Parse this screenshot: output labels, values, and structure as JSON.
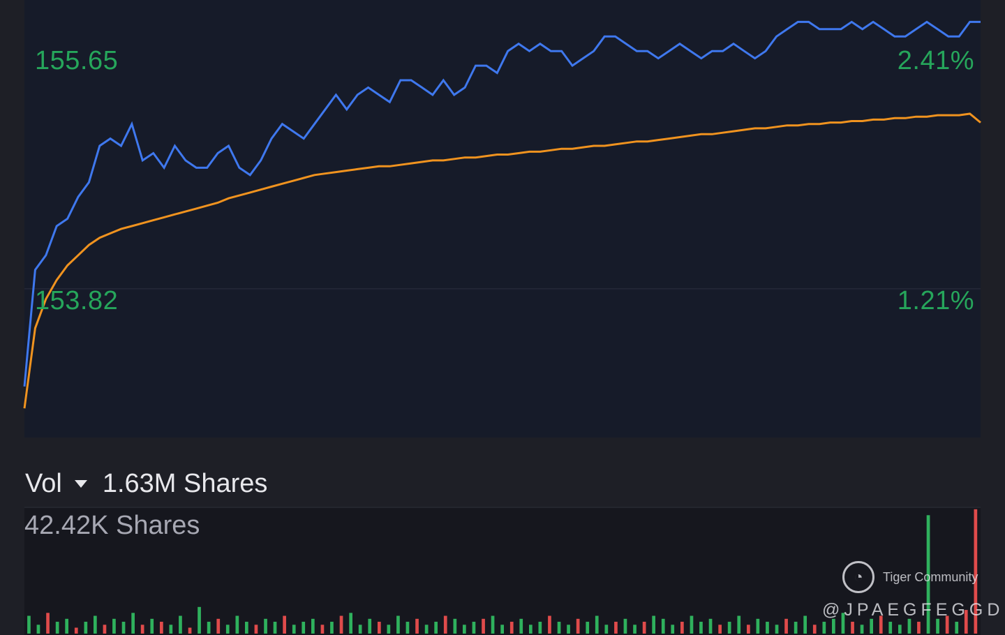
{
  "chart_data": [
    {
      "type": "line",
      "series": [
        {
          "color": "#3f78ee",
          "values": [
            153.15,
            153.95,
            154.05,
            154.25,
            154.3,
            154.45,
            154.55,
            154.8,
            154.85,
            154.8,
            154.95,
            154.7,
            154.75,
            154.65,
            154.8,
            154.7,
            154.65,
            154.65,
            154.75,
            154.8,
            154.65,
            154.6,
            154.7,
            154.85,
            154.95,
            154.9,
            154.85,
            154.95,
            155.05,
            155.15,
            155.05,
            155.15,
            155.2,
            155.15,
            155.1,
            155.25,
            155.25,
            155.2,
            155.15,
            155.25,
            155.15,
            155.2,
            155.35,
            155.35,
            155.3,
            155.45,
            155.5,
            155.45,
            155.5,
            155.45,
            155.45,
            155.35,
            155.4,
            155.45,
            155.55,
            155.55,
            155.5,
            155.45,
            155.45,
            155.4,
            155.45,
            155.5,
            155.45,
            155.4,
            155.45,
            155.45,
            155.5,
            155.45,
            155.4,
            155.45,
            155.55,
            155.6,
            155.65,
            155.65,
            155.6,
            155.6,
            155.6,
            155.65,
            155.6,
            155.65,
            155.6,
            155.55,
            155.55,
            155.6,
            155.65,
            155.6,
            155.55,
            155.55,
            155.65,
            155.65
          ],
          "name": ""
        },
        {
          "color": "#f0931f",
          "values": [
            153.0,
            153.55,
            153.75,
            153.88,
            153.98,
            154.05,
            154.12,
            154.17,
            154.2,
            154.23,
            154.25,
            154.27,
            154.29,
            154.31,
            154.33,
            154.35,
            154.37,
            154.39,
            154.41,
            154.44,
            154.46,
            154.48,
            154.5,
            154.52,
            154.54,
            154.56,
            154.58,
            154.6,
            154.61,
            154.62,
            154.63,
            154.64,
            154.65,
            154.66,
            154.66,
            154.67,
            154.68,
            154.69,
            154.7,
            154.7,
            154.71,
            154.72,
            154.72,
            154.73,
            154.74,
            154.74,
            154.75,
            154.76,
            154.76,
            154.77,
            154.78,
            154.78,
            154.79,
            154.8,
            154.8,
            154.81,
            154.82,
            154.83,
            154.83,
            154.84,
            154.85,
            154.86,
            154.87,
            154.88,
            154.88,
            154.89,
            154.9,
            154.91,
            154.92,
            154.92,
            154.93,
            154.94,
            154.94,
            154.95,
            154.95,
            154.96,
            154.96,
            154.97,
            154.97,
            154.98,
            154.98,
            154.99,
            154.99,
            155.0,
            155.0,
            155.01,
            155.01,
            155.01,
            155.02,
            154.96
          ],
          "name": ""
        }
      ],
      "ylim": [
        152.8,
        155.8
      ],
      "y_ticks": [
        {
          "price": "155.65",
          "pct": "2.41%",
          "value": 155.65
        },
        {
          "price": "153.82",
          "pct": "1.21%",
          "value": 153.82
        }
      ],
      "grid": "horizontal line at 153.82",
      "legend": "none",
      "colors": {
        "background": "#161b29",
        "axis_label": "#26a65b"
      }
    },
    {
      "type": "bar",
      "title": "Vol",
      "subtitle": "1.63M Shares",
      "ylabel": "42.42K Shares",
      "ylim": [
        0,
        42.42
      ],
      "up_color": "#2fb15d",
      "down_color": "#e04b4b",
      "values": [
        6,
        3,
        7,
        4,
        5,
        2,
        4,
        6,
        3,
        5,
        4,
        7,
        3,
        5,
        4,
        3,
        6,
        2,
        9,
        4,
        5,
        3,
        6,
        4,
        3,
        5,
        4,
        6,
        3,
        4,
        5,
        3,
        4,
        6,
        7,
        3,
        5,
        4,
        3,
        6,
        4,
        5,
        3,
        4,
        6,
        5,
        3,
        4,
        5,
        6,
        3,
        4,
        5,
        3,
        4,
        6,
        4,
        3,
        5,
        4,
        6,
        3,
        4,
        5,
        3,
        4,
        6,
        5,
        3,
        4,
        6,
        4,
        5,
        3,
        4,
        6,
        3,
        5,
        4,
        3,
        5,
        4,
        6,
        3,
        4,
        5,
        7,
        4,
        3,
        5,
        6,
        4,
        3,
        5,
        4,
        40,
        5,
        6,
        4,
        8,
        42
      ],
      "colors_up": [
        true,
        true,
        false,
        true,
        true,
        false,
        true,
        true,
        false,
        true,
        true,
        true,
        false,
        true,
        false,
        true,
        true,
        false,
        true,
        true,
        false,
        true,
        true,
        true,
        false,
        true,
        true,
        false,
        true,
        true,
        true,
        false,
        true,
        false,
        true,
        true,
        true,
        false,
        true,
        true,
        true,
        false,
        true,
        true,
        false,
        true,
        true,
        true,
        false,
        true,
        true,
        false,
        true,
        true,
        true,
        false,
        true,
        true,
        false,
        true,
        true,
        true,
        false,
        true,
        true,
        false,
        true,
        true,
        true,
        false,
        true,
        true,
        true,
        false,
        true,
        true,
        false,
        true,
        true,
        true,
        false,
        true,
        true,
        false,
        true,
        true,
        true,
        false,
        true,
        true,
        false,
        true,
        true,
        true,
        false,
        true,
        true,
        false,
        true,
        false,
        false
      ]
    }
  ],
  "watermark": {
    "brand": "Tiger Community",
    "user": "@JPAEGFEGGD",
    "logo_icon": "tiger-logo-icon"
  }
}
